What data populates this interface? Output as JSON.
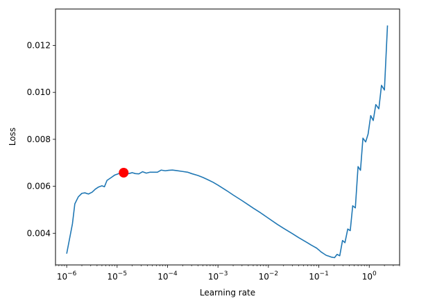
{
  "chart_data": {
    "type": "line",
    "title": "",
    "xlabel": "Learning rate",
    "ylabel": "Loss",
    "xscale": "log",
    "xlim": [
      6e-07,
      4.0
    ],
    "ylim": [
      0.00265,
      0.01355
    ],
    "grid": false,
    "line_color": "#1f77b4",
    "marker_color": "#ff0000",
    "x_ticks": [
      {
        "value": 1e-06,
        "base": "10",
        "exp": "−6"
      },
      {
        "value": 1e-05,
        "base": "10",
        "exp": "−5"
      },
      {
        "value": 0.0001,
        "base": "10",
        "exp": "−4"
      },
      {
        "value": 0.001,
        "base": "10",
        "exp": "−3"
      },
      {
        "value": 0.01,
        "base": "10",
        "exp": "−2"
      },
      {
        "value": 0.1,
        "base": "10",
        "exp": "−1"
      },
      {
        "value": 1,
        "base": "10",
        "exp": "0"
      }
    ],
    "y_ticks": [
      {
        "value": 0.004,
        "label": "0.004"
      },
      {
        "value": 0.006,
        "label": "0.006"
      },
      {
        "value": 0.008,
        "label": "0.008"
      },
      {
        "value": 0.01,
        "label": "0.010"
      },
      {
        "value": 0.012,
        "label": "0.012"
      }
    ],
    "marker": {
      "x": 1.35e-05,
      "y": 0.00658
    },
    "series": [
      {
        "x": [
          1e-06,
          1.3e-06,
          1.45e-06,
          1.7e-06,
          2e-06,
          2.3e-06,
          2.7e-06,
          3.2e-06,
          3.7e-06,
          4.3e-06,
          5e-06,
          5.6e-06,
          6.3e-06,
          7.5e-06,
          9e-06,
          1.05e-05,
          1.2e-05,
          1.4e-05,
          1.7e-05,
          2e-05,
          2.3e-05,
          2.7e-05,
          3.2e-05,
          3.8e-05,
          4.5e-05,
          5.3e-05,
          6.3e-05,
          7.5e-05,
          9e-05,
          0.000105,
          0.000125,
          0.00015,
          0.0002,
          0.00025,
          0.0003,
          0.0004,
          0.0005,
          0.00063,
          0.0008,
          0.001,
          0.0015,
          0.002,
          0.003,
          0.004,
          0.005,
          0.007,
          0.01,
          0.015,
          0.02,
          0.03,
          0.04,
          0.05,
          0.06,
          0.07,
          0.08,
          0.09,
          0.1,
          0.11,
          0.125,
          0.14,
          0.16,
          0.18,
          0.205,
          0.23,
          0.26,
          0.295,
          0.33,
          0.375,
          0.42,
          0.47,
          0.53,
          0.6,
          0.67,
          0.75,
          0.85,
          0.95,
          1.07,
          1.2,
          1.35,
          1.55,
          1.75,
          2.0,
          2.3
        ],
        "y": [
          0.00313,
          0.0044,
          0.00525,
          0.00555,
          0.0057,
          0.00572,
          0.00567,
          0.00575,
          0.00588,
          0.00597,
          0.00602,
          0.00598,
          0.00625,
          0.00636,
          0.00648,
          0.00653,
          0.00658,
          0.00659,
          0.00654,
          0.00658,
          0.00654,
          0.00653,
          0.00662,
          0.00656,
          0.0066,
          0.0066,
          0.0066,
          0.00669,
          0.00666,
          0.00668,
          0.00669,
          0.00667,
          0.00663,
          0.0066,
          0.00654,
          0.00646,
          0.00638,
          0.00628,
          0.00617,
          0.00605,
          0.00581,
          0.00563,
          0.00539,
          0.00521,
          0.00507,
          0.00487,
          0.00464,
          0.00438,
          0.00421,
          0.00398,
          0.00381,
          0.00369,
          0.00359,
          0.0035,
          0.00343,
          0.00337,
          0.00329,
          0.00321,
          0.00313,
          0.00306,
          0.00302,
          0.00298,
          0.00296,
          0.0031,
          0.00304,
          0.00369,
          0.0036,
          0.00418,
          0.00411,
          0.00517,
          0.00508,
          0.00684,
          0.00668,
          0.00805,
          0.00789,
          0.00823,
          0.00901,
          0.0088,
          0.00948,
          0.0093,
          0.0103,
          0.0101,
          0.01285
        ]
      }
    ]
  }
}
